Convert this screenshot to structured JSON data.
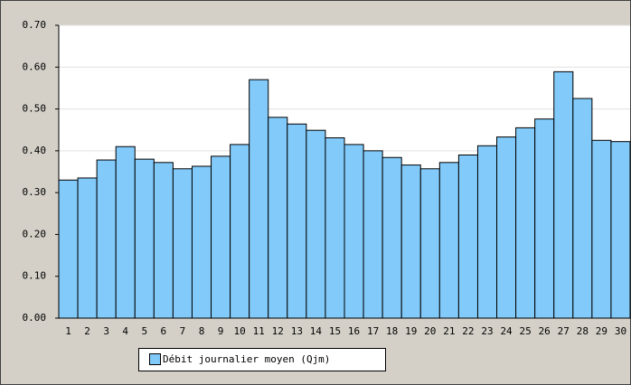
{
  "chart_data": {
    "type": "bar",
    "categories": [
      "1",
      "2",
      "3",
      "4",
      "5",
      "6",
      "7",
      "8",
      "9",
      "10",
      "11",
      "12",
      "13",
      "14",
      "15",
      "16",
      "17",
      "18",
      "19",
      "20",
      "21",
      "22",
      "23",
      "24",
      "25",
      "26",
      "27",
      "28",
      "29",
      "30"
    ],
    "series": [
      {
        "name": "Débit journalier moyen (Qjm)",
        "color": "#82cafa",
        "values": [
          0.33,
          0.335,
          0.378,
          0.41,
          0.38,
          0.372,
          0.357,
          0.363,
          0.387,
          0.415,
          0.57,
          0.48,
          0.464,
          0.449,
          0.431,
          0.415,
          0.4,
          0.384,
          0.366,
          0.357,
          0.372,
          0.39,
          0.412,
          0.433,
          0.455,
          0.476,
          0.589,
          0.525,
          0.425,
          0.422
        ]
      }
    ],
    "ylim": [
      0,
      0.7
    ],
    "yticks": [
      {
        "value": 0,
        "label": "0.00"
      },
      {
        "value": 0.1,
        "label": "0.10"
      },
      {
        "value": 0.2,
        "label": "0.20"
      },
      {
        "value": 0.3,
        "label": "0.30"
      },
      {
        "value": 0.4,
        "label": "0.40"
      },
      {
        "value": 0.5,
        "label": "0.50"
      },
      {
        "value": 0.6,
        "label": "0.60"
      },
      {
        "value": 0.7,
        "label": "0.70"
      }
    ],
    "grid": true,
    "legend": "bottom-left"
  }
}
